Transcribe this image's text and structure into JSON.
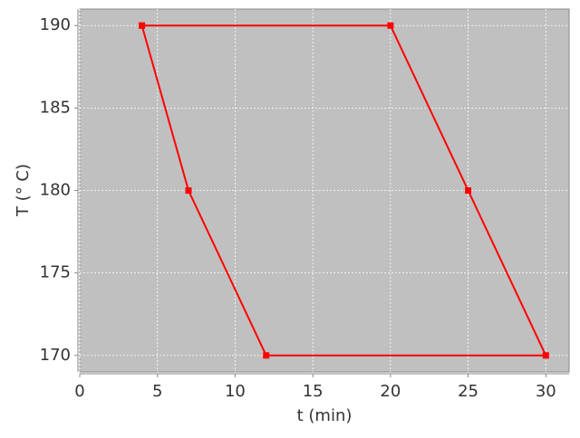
{
  "chart_data": {
    "type": "line",
    "x_label": "t (min)",
    "y_label": "T (° C)",
    "series": [
      {
        "name": "T",
        "color": "#ff0000",
        "x": [
          4,
          20,
          25,
          30,
          12,
          7,
          4
        ],
        "values": [
          190,
          190,
          180,
          170,
          170,
          180,
          190
        ]
      }
    ],
    "xlim": [
      0,
      31.5
    ],
    "ylim": [
      169,
      191
    ],
    "xticks": [
      0,
      5,
      10,
      15,
      20,
      25,
      30
    ],
    "yticks": [
      170,
      175,
      180,
      185,
      190
    ],
    "grid": true,
    "background": "#c0c0c0"
  }
}
